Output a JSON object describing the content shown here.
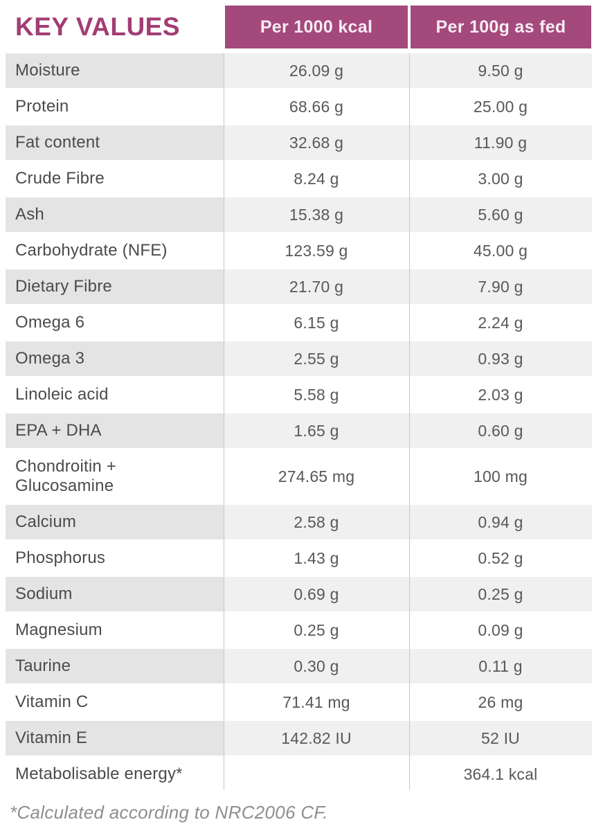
{
  "table": {
    "title": "KEY VALUES",
    "columns": [
      "Per 1000 kcal",
      "Per 100g as fed"
    ],
    "rows": [
      {
        "label": "Moisture",
        "per_1000_kcal": "26.09 g",
        "per_100g_as_fed": "9.50 g"
      },
      {
        "label": "Protein",
        "per_1000_kcal": "68.66 g",
        "per_100g_as_fed": "25.00 g"
      },
      {
        "label": "Fat content",
        "per_1000_kcal": "32.68 g",
        "per_100g_as_fed": "11.90 g"
      },
      {
        "label": "Crude Fibre",
        "per_1000_kcal": "8.24 g",
        "per_100g_as_fed": "3.00 g"
      },
      {
        "label": "Ash",
        "per_1000_kcal": "15.38 g",
        "per_100g_as_fed": "5.60 g"
      },
      {
        "label": "Carbohydrate (NFE)",
        "per_1000_kcal": "123.59 g",
        "per_100g_as_fed": "45.00 g"
      },
      {
        "label": "Dietary Fibre",
        "per_1000_kcal": "21.70 g",
        "per_100g_as_fed": "7.90 g"
      },
      {
        "label": "Omega 6",
        "per_1000_kcal": "6.15 g",
        "per_100g_as_fed": "2.24 g"
      },
      {
        "label": "Omega 3",
        "per_1000_kcal": "2.55 g",
        "per_100g_as_fed": "0.93 g"
      },
      {
        "label": "Linoleic acid",
        "per_1000_kcal": "5.58 g",
        "per_100g_as_fed": "2.03 g"
      },
      {
        "label": "EPA + DHA",
        "per_1000_kcal": "1.65 g",
        "per_100g_as_fed": "0.60 g"
      },
      {
        "label": "Chondroitin +\nGlucosamine",
        "per_1000_kcal": "274.65 mg",
        "per_100g_as_fed": "100 mg"
      },
      {
        "label": "Calcium",
        "per_1000_kcal": "2.58 g",
        "per_100g_as_fed": "0.94 g"
      },
      {
        "label": "Phosphorus",
        "per_1000_kcal": "1.43 g",
        "per_100g_as_fed": "0.52 g"
      },
      {
        "label": "Sodium",
        "per_1000_kcal": "0.69 g",
        "per_100g_as_fed": "0.25 g"
      },
      {
        "label": "Magnesium",
        "per_1000_kcal": "0.25 g",
        "per_100g_as_fed": "0.09 g"
      },
      {
        "label": "Taurine",
        "per_1000_kcal": "0.30 g",
        "per_100g_as_fed": "0.11 g"
      },
      {
        "label": "Vitamin C",
        "per_1000_kcal": "71.41 mg",
        "per_100g_as_fed": "26 mg"
      },
      {
        "label": "Vitamin E",
        "per_1000_kcal": "142.82 IU",
        "per_100g_as_fed": "52 IU"
      },
      {
        "label": "Metabolisable energy*",
        "per_1000_kcal": "",
        "per_100g_as_fed": "364.1 kcal"
      }
    ],
    "footnote": "*Calculated according to NRC2006 CF."
  },
  "chart_data": {
    "type": "table",
    "title": "KEY VALUES",
    "columns": [
      "Key values",
      "Per 1000 kcal",
      "Per 100g as fed"
    ],
    "rows": [
      [
        "Moisture",
        "26.09 g",
        "9.50 g"
      ],
      [
        "Protein",
        "68.66 g",
        "25.00 g"
      ],
      [
        "Fat content",
        "32.68 g",
        "11.90 g"
      ],
      [
        "Crude Fibre",
        "8.24 g",
        "3.00 g"
      ],
      [
        "Ash",
        "15.38 g",
        "5.60 g"
      ],
      [
        "Carbohydrate (NFE)",
        "123.59 g",
        "45.00 g"
      ],
      [
        "Dietary Fibre",
        "21.70 g",
        "7.90 g"
      ],
      [
        "Omega 6",
        "6.15 g",
        "2.24 g"
      ],
      [
        "Omega 3",
        "2.55 g",
        "0.93 g"
      ],
      [
        "Linoleic acid",
        "5.58 g",
        "2.03 g"
      ],
      [
        "EPA + DHA",
        "1.65 g",
        "0.60 g"
      ],
      [
        "Chondroitin + Glucosamine",
        "274.65 mg",
        "100 mg"
      ],
      [
        "Calcium",
        "2.58 g",
        "0.94 g"
      ],
      [
        "Phosphorus",
        "1.43 g",
        "0.52 g"
      ],
      [
        "Sodium",
        "0.69 g",
        "0.25 g"
      ],
      [
        "Magnesium",
        "0.25 g",
        "0.09 g"
      ],
      [
        "Taurine",
        "0.30 g",
        "0.11 g"
      ],
      [
        "Vitamin C",
        "71.41 mg",
        "26 mg"
      ],
      [
        "Vitamin E",
        "142.82 IU",
        "52 IU"
      ],
      [
        "Metabolisable energy*",
        "",
        "364.1 kcal"
      ]
    ],
    "footnote": "*Calculated according to NRC2006 CF.",
    "layout": {
      "striped": true,
      "stripe_start": "first-row",
      "header_position": "top"
    }
  },
  "colors": {
    "accent": "#a4497c",
    "title_text": "#a23d74",
    "header_text": "#f7ecf3",
    "row_stripe_label": "#e4e4e4",
    "row_stripe_value": "#f0f0f0",
    "body_text": "#4b4b4b",
    "divider": "#c6c6c6",
    "footnote_text": "#8e8e8e"
  }
}
